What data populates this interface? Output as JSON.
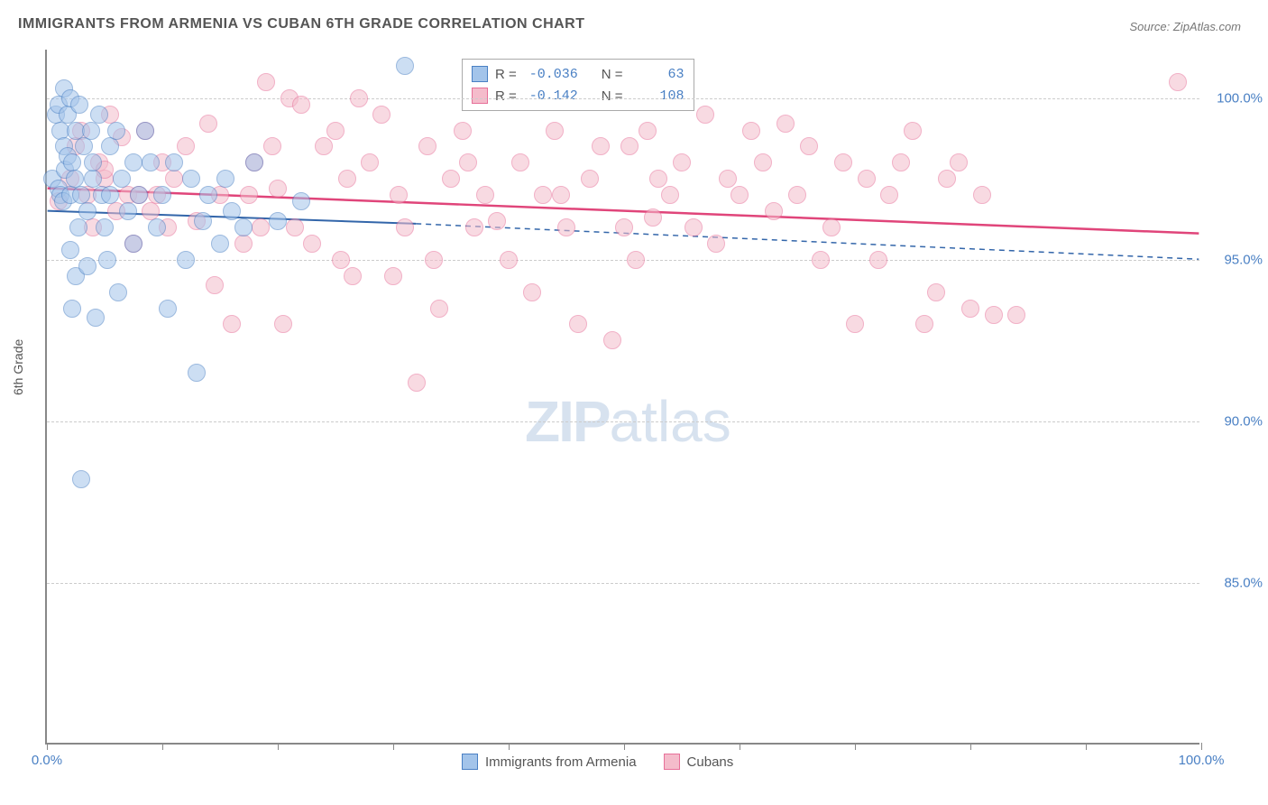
{
  "title": "IMMIGRANTS FROM ARMENIA VS CUBAN 6TH GRADE CORRELATION CHART",
  "source": "Source: ZipAtlas.com",
  "y_axis_label": "6th Grade",
  "watermark": {
    "bold": "ZIP",
    "rest": "atlas"
  },
  "x_axis": {
    "min": 0,
    "max": 100,
    "ticks": [
      0,
      50,
      100
    ],
    "tick_labels": [
      "0.0%",
      "",
      "100.0%"
    ]
  },
  "y_axis": {
    "min": 80,
    "max": 101.5,
    "gridlines": [
      85,
      90,
      95,
      100
    ],
    "tick_labels": [
      "85.0%",
      "90.0%",
      "95.0%",
      "100.0%"
    ]
  },
  "colors": {
    "series1_fill": "#a3c4ea",
    "series1_stroke": "#4a80c4",
    "series2_fill": "#f4bccb",
    "series2_stroke": "#e77099",
    "trend1": "#3366aa",
    "trend2": "#e0457a",
    "tick_text": "#4a80c4",
    "grid": "#cccccc"
  },
  "legend_top": {
    "rows": [
      {
        "swatch_fill": "#a3c4ea",
        "swatch_stroke": "#4a80c4",
        "r_label": "R =",
        "r_val": "-0.036",
        "n_label": "N =",
        "n_val": "63"
      },
      {
        "swatch_fill": "#f4bccb",
        "swatch_stroke": "#e77099",
        "r_label": "R =",
        "r_val": "-0.142",
        "n_label": "N =",
        "n_val": "108"
      }
    ]
  },
  "legend_bottom": {
    "items": [
      {
        "swatch_fill": "#a3c4ea",
        "swatch_stroke": "#4a80c4",
        "label": "Immigrants from Armenia"
      },
      {
        "swatch_fill": "#f4bccb",
        "swatch_stroke": "#e77099",
        "label": "Cubans"
      }
    ]
  },
  "trendlines": [
    {
      "color": "#3366aa",
      "solid_from_x": 0,
      "solid_to_x": 32,
      "y_start": 96.5,
      "y_end_solid": 96.1,
      "dash_to_x": 100,
      "y_end_dash": 95.0,
      "width": 2
    },
    {
      "color": "#e0457a",
      "solid_from_x": 0,
      "solid_to_x": 100,
      "y_start": 97.2,
      "y_end_solid": 95.8,
      "width": 2.5
    }
  ],
  "series": [
    {
      "name": "Immigrants from Armenia",
      "fill": "#a3c4ea",
      "stroke": "#4a80c4",
      "points": [
        [
          0.5,
          97.5
        ],
        [
          0.8,
          99.5
        ],
        [
          1.0,
          97.2
        ],
        [
          1.0,
          99.8
        ],
        [
          1.2,
          97.0
        ],
        [
          1.2,
          99.0
        ],
        [
          1.4,
          96.8
        ],
        [
          1.5,
          100.3
        ],
        [
          1.5,
          98.5
        ],
        [
          1.6,
          97.8
        ],
        [
          1.8,
          98.2
        ],
        [
          1.8,
          99.5
        ],
        [
          2.0,
          97.0
        ],
        [
          2.0,
          100.0
        ],
        [
          2.0,
          95.3
        ],
        [
          2.2,
          93.5
        ],
        [
          2.2,
          98.0
        ],
        [
          2.4,
          97.5
        ],
        [
          2.5,
          99.0
        ],
        [
          2.5,
          94.5
        ],
        [
          2.7,
          96.0
        ],
        [
          2.8,
          99.8
        ],
        [
          3.0,
          97.0
        ],
        [
          3.0,
          88.2
        ],
        [
          3.2,
          98.5
        ],
        [
          3.5,
          96.5
        ],
        [
          3.5,
          94.8
        ],
        [
          3.8,
          99.0
        ],
        [
          4.0,
          97.5
        ],
        [
          4.0,
          98.0
        ],
        [
          4.2,
          93.2
        ],
        [
          4.5,
          99.5
        ],
        [
          4.8,
          97.0
        ],
        [
          5.0,
          96.0
        ],
        [
          5.2,
          95.0
        ],
        [
          5.5,
          98.5
        ],
        [
          5.5,
          97.0
        ],
        [
          6.0,
          99.0
        ],
        [
          6.2,
          94.0
        ],
        [
          6.5,
          97.5
        ],
        [
          7.0,
          96.5
        ],
        [
          7.5,
          95.5
        ],
        [
          7.5,
          98.0
        ],
        [
          8.0,
          97.0
        ],
        [
          8.5,
          99.0
        ],
        [
          9.0,
          98.0
        ],
        [
          9.5,
          96.0
        ],
        [
          10.0,
          97.0
        ],
        [
          10.5,
          93.5
        ],
        [
          11.0,
          98.0
        ],
        [
          12.0,
          95.0
        ],
        [
          12.5,
          97.5
        ],
        [
          13.0,
          91.5
        ],
        [
          13.5,
          96.2
        ],
        [
          14.0,
          97.0
        ],
        [
          15.0,
          95.5
        ],
        [
          15.5,
          97.5
        ],
        [
          16.0,
          96.5
        ],
        [
          17.0,
          96.0
        ],
        [
          18.0,
          98.0
        ],
        [
          20.0,
          96.2
        ],
        [
          22.0,
          96.8
        ],
        [
          31.0,
          101.0
        ]
      ]
    },
    {
      "name": "Cubans",
      "fill": "#f4bccb",
      "stroke": "#e77099",
      "points": [
        [
          1.0,
          96.8
        ],
        [
          2.0,
          97.5
        ],
        [
          2.5,
          98.5
        ],
        [
          3.0,
          99.0
        ],
        [
          3.5,
          97.0
        ],
        [
          4.0,
          96.0
        ],
        [
          4.5,
          98.0
        ],
        [
          5.0,
          97.5
        ],
        [
          5.0,
          97.8
        ],
        [
          5.5,
          99.5
        ],
        [
          6.0,
          96.5
        ],
        [
          6.5,
          98.8
        ],
        [
          7.0,
          97.0
        ],
        [
          7.5,
          95.5
        ],
        [
          8.0,
          97.0
        ],
        [
          8.5,
          99.0
        ],
        [
          9.0,
          96.5
        ],
        [
          9.5,
          97.0
        ],
        [
          10.0,
          98.0
        ],
        [
          10.5,
          96.0
        ],
        [
          11.0,
          97.5
        ],
        [
          12.0,
          98.5
        ],
        [
          13.0,
          96.2
        ],
        [
          14.0,
          99.2
        ],
        [
          14.5,
          94.2
        ],
        [
          15.0,
          97.0
        ],
        [
          16.0,
          93.0
        ],
        [
          17.0,
          95.5
        ],
        [
          18.0,
          98.0
        ],
        [
          18.5,
          96.0
        ],
        [
          19.0,
          100.5
        ],
        [
          20.0,
          97.2
        ],
        [
          20.5,
          93.0
        ],
        [
          21.0,
          100.0
        ],
        [
          22.0,
          99.8
        ],
        [
          23.0,
          95.5
        ],
        [
          24.0,
          98.5
        ],
        [
          25.0,
          99.0
        ],
        [
          25.5,
          95.0
        ],
        [
          26.0,
          97.5
        ],
        [
          27.0,
          100.0
        ],
        [
          28.0,
          98.0
        ],
        [
          29.0,
          99.5
        ],
        [
          30.0,
          94.5
        ],
        [
          30.5,
          97.0
        ],
        [
          31.0,
          96.0
        ],
        [
          32.0,
          91.2
        ],
        [
          33.0,
          98.5
        ],
        [
          34.0,
          93.5
        ],
        [
          35.0,
          97.5
        ],
        [
          36.0,
          99.0
        ],
        [
          37.0,
          96.0
        ],
        [
          38.0,
          97.0
        ],
        [
          39.0,
          96.2
        ],
        [
          40.0,
          95.0
        ],
        [
          41.0,
          98.0
        ],
        [
          42.0,
          94.0
        ],
        [
          43.0,
          97.0
        ],
        [
          44.0,
          99.0
        ],
        [
          45.0,
          96.0
        ],
        [
          46.0,
          93.0
        ],
        [
          47.0,
          97.5
        ],
        [
          48.0,
          98.5
        ],
        [
          49.0,
          92.5
        ],
        [
          50.0,
          96.0
        ],
        [
          50.5,
          98.5
        ],
        [
          51.0,
          95.0
        ],
        [
          52.0,
          99.0
        ],
        [
          53.0,
          97.5
        ],
        [
          54.0,
          97.0
        ],
        [
          55.0,
          98.0
        ],
        [
          56.0,
          96.0
        ],
        [
          57.0,
          99.5
        ],
        [
          58.0,
          95.5
        ],
        [
          59.0,
          97.5
        ],
        [
          60.0,
          97.0
        ],
        [
          61.0,
          99.0
        ],
        [
          62.0,
          98.0
        ],
        [
          63.0,
          96.5
        ],
        [
          64.0,
          99.2
        ],
        [
          65.0,
          97.0
        ],
        [
          66.0,
          98.5
        ],
        [
          67.0,
          95.0
        ],
        [
          68.0,
          96.0
        ],
        [
          69.0,
          98.0
        ],
        [
          70.0,
          93.0
        ],
        [
          71.0,
          97.5
        ],
        [
          72.0,
          95.0
        ],
        [
          73.0,
          97.0
        ],
        [
          74.0,
          98.0
        ],
        [
          75.0,
          99.0
        ],
        [
          76.0,
          93.0
        ],
        [
          77.0,
          94.0
        ],
        [
          78.0,
          97.5
        ],
        [
          79.0,
          98.0
        ],
        [
          80.0,
          93.5
        ],
        [
          81.0,
          97.0
        ],
        [
          82.0,
          93.3
        ],
        [
          84.0,
          93.3
        ],
        [
          98.0,
          100.5
        ],
        [
          17.5,
          97.0
        ],
        [
          19.5,
          98.5
        ],
        [
          21.5,
          96.0
        ],
        [
          26.5,
          94.5
        ],
        [
          33.5,
          95.0
        ],
        [
          36.5,
          98.0
        ],
        [
          44.5,
          97.0
        ],
        [
          52.5,
          96.3
        ]
      ]
    }
  ]
}
